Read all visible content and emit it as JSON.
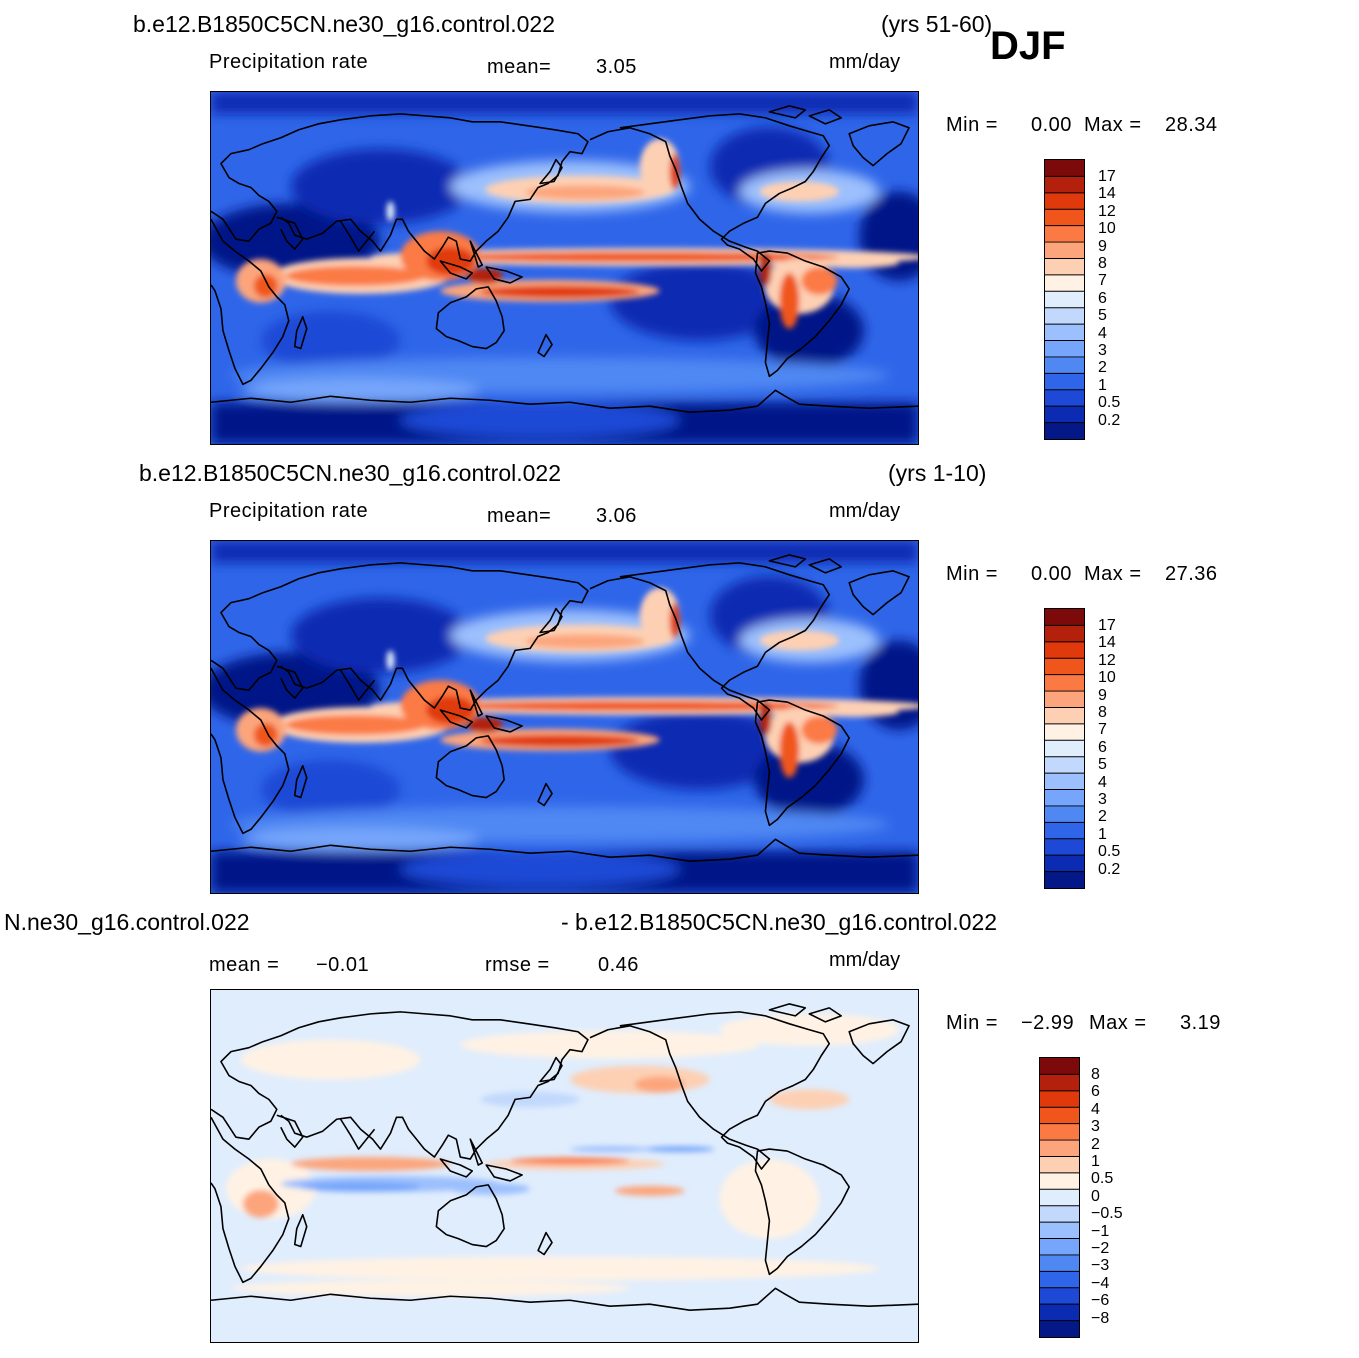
{
  "season": "DJF",
  "panel1": {
    "case": "b.e12.B1850C5CN.ne30_g16.control.022",
    "years": "(yrs 51-60)",
    "variable": "Precipitation rate",
    "mean_label": "mean=",
    "mean": "3.05",
    "units": "mm/day",
    "min_label": "Min =",
    "min": "0.00",
    "max_label": "Max =",
    "max": "28.34",
    "levels": [
      "17",
      "14",
      "12",
      "10",
      "9",
      "8",
      "7",
      "6",
      "5",
      "4",
      "3",
      "2",
      "1",
      "0.5",
      "0.2"
    ]
  },
  "panel2": {
    "case": "b.e12.B1850C5CN.ne30_g16.control.022",
    "years": "(yrs 1-10)",
    "variable": "Precipitation rate",
    "mean_label": "mean=",
    "mean": "3.06",
    "units": "mm/day",
    "min_label": "Min =",
    "min": "0.00",
    "max_label": "Max =",
    "max": "27.36",
    "levels": [
      "17",
      "14",
      "12",
      "10",
      "9",
      "8",
      "7",
      "6",
      "5",
      "4",
      "3",
      "2",
      "1",
      "0.5",
      "0.2"
    ]
  },
  "panel3": {
    "case_left": "N.ne30_g16.control.022",
    "case_right": "- b.e12.B1850C5CN.ne30_g16.control.022",
    "mean_label": "mean =",
    "mean": "−0.01",
    "rmse_label": "rmse =",
    "rmse": "0.46",
    "units": "mm/day",
    "min_label": "Min =",
    "min": "−2.99",
    "max_label": "Max =",
    "max": "3.19",
    "levels": [
      "8",
      "6",
      "4",
      "3",
      "2",
      "1",
      "0.5",
      "0",
      "−0.5",
      "−1",
      "−2",
      "−3",
      "−4",
      "−6",
      "−8"
    ]
  },
  "colors": {
    "precip_scale": [
      "#7d0a0a",
      "#b3200b",
      "#e03a0c",
      "#f0561c",
      "#fb7a44",
      "#fca57c",
      "#fdd0b4",
      "#fff2e4",
      "#e0edfd",
      "#c2d9fd",
      "#9cc0fd",
      "#76a6fb",
      "#4f88f3",
      "#2f66e9",
      "#1e48d6",
      "#0b2cb2",
      "#041888"
    ],
    "diff_scale": [
      "#7d0a0a",
      "#b3200b",
      "#e03a0c",
      "#f0561c",
      "#fb7a44",
      "#fca57c",
      "#fdd0b4",
      "#fff2e4",
      "#e0edfd",
      "#c2d9fd",
      "#9cc0fd",
      "#76a6fb",
      "#4f88f3",
      "#2f66e9",
      "#1e48d6",
      "#0b2cb2",
      "#041888"
    ]
  }
}
